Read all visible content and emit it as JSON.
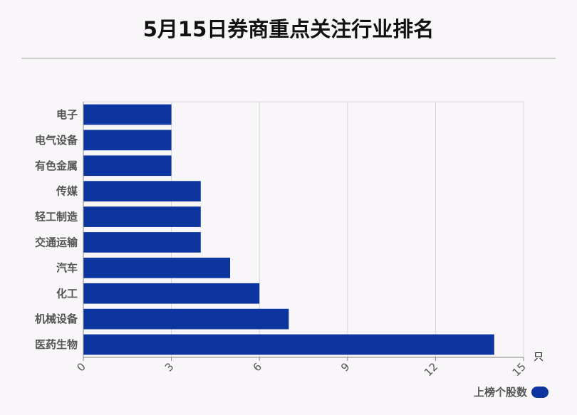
{
  "colors": {
    "bar": "#0d35a0",
    "grid": "#d6d6d6",
    "axis": "#888888",
    "label": "#555555"
  },
  "chart_data": {
    "type": "bar",
    "orientation": "horizontal",
    "title": "5月15日券商重点关注行业排名",
    "categories": [
      "电子",
      "电气设备",
      "有色金属",
      "传媒",
      "轻工制造",
      "交通运输",
      "汽车",
      "化工",
      "机械设备",
      "医药生物"
    ],
    "series": [
      {
        "name": "上榜个股数",
        "values": [
          3,
          3,
          3,
          4,
          4,
          4,
          5,
          6,
          7,
          14
        ]
      }
    ],
    "x_unit": "只",
    "xlim": [
      0,
      15
    ],
    "x_ticks": [
      "0",
      "3",
      "6",
      "9",
      "12",
      "15"
    ],
    "grid": true,
    "legend_position": "bottom-right"
  }
}
